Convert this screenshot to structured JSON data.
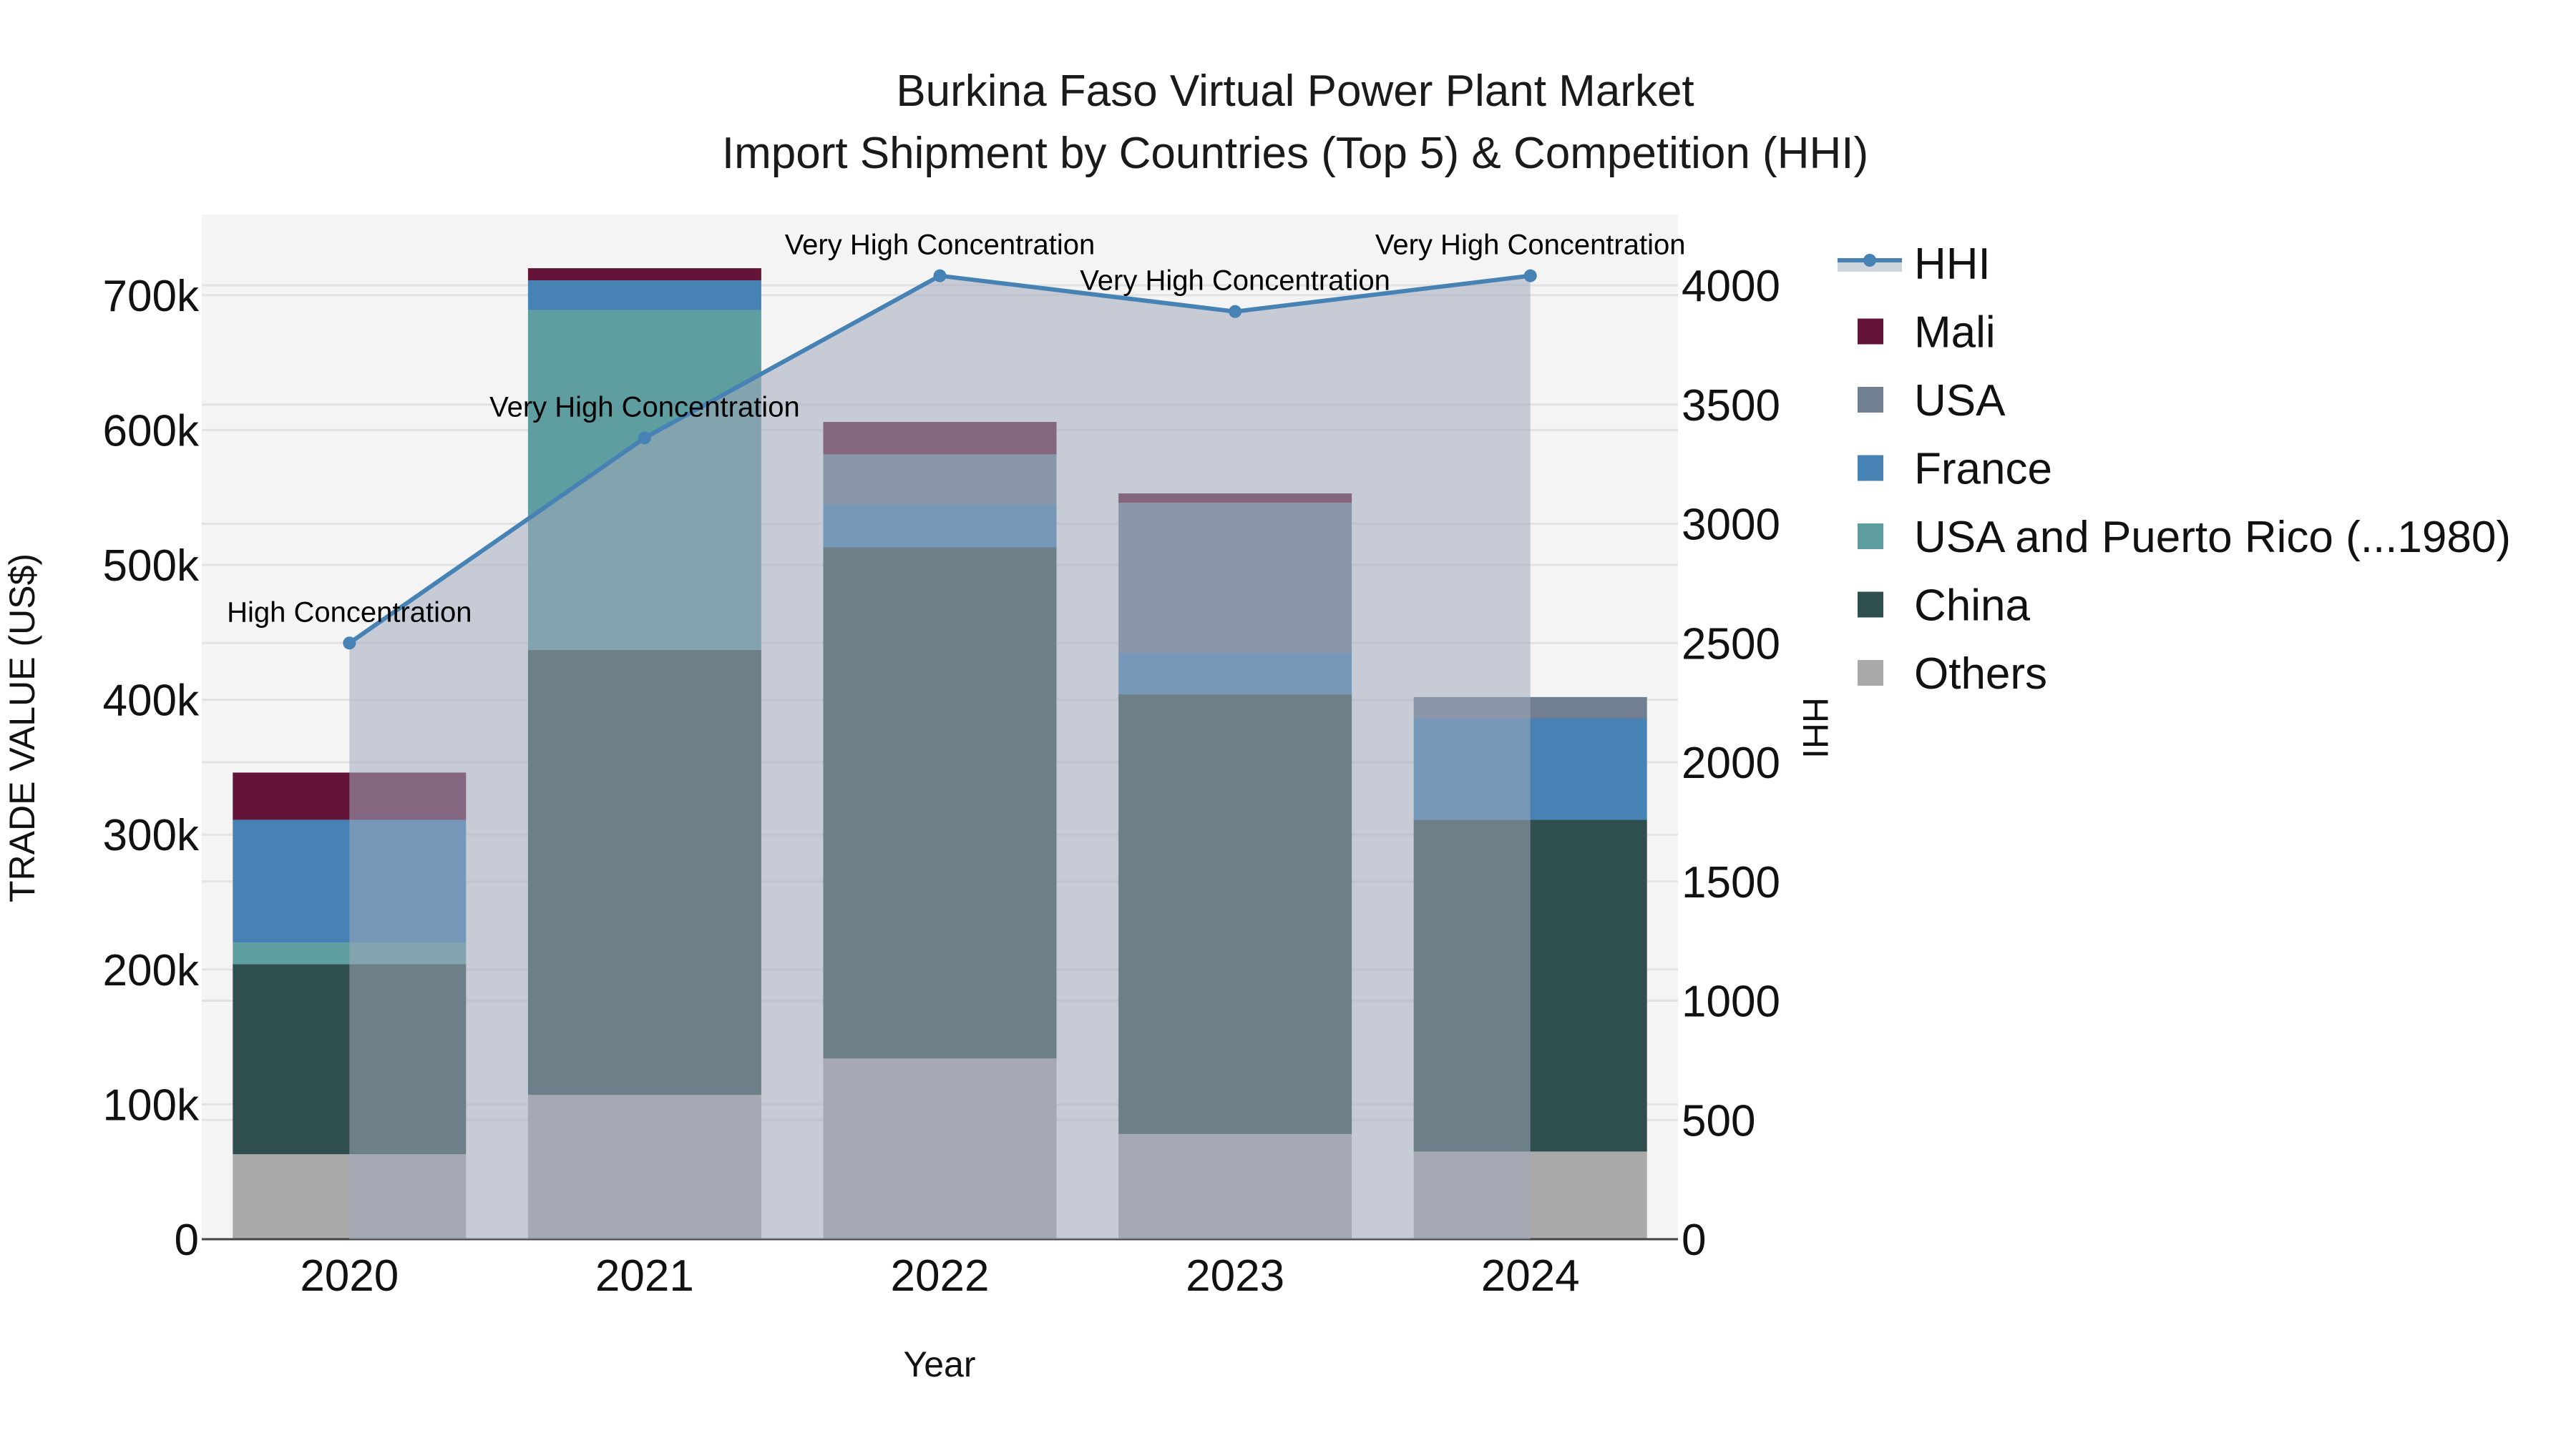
{
  "title": {
    "line1": "Burkina Faso Virtual Power Plant Market",
    "line2": "Import Shipment by Countries (Top 5) & Competition (HHI)"
  },
  "axes": {
    "x_title": "Year",
    "y_left_title": "TRADE VALUE (US$)",
    "y_right_title": "HHI",
    "y_left_ticks": [
      "0",
      "100k",
      "200k",
      "300k",
      "400k",
      "500k",
      "600k",
      "700k"
    ],
    "y_right_ticks": [
      "0",
      "500",
      "1000",
      "1500",
      "2000",
      "2500",
      "3000",
      "3500",
      "4000"
    ]
  },
  "legend": [
    {
      "label": "HHI",
      "color": "#4682b4",
      "type": "line"
    },
    {
      "label": "Mali",
      "color": "#641438",
      "type": "bar"
    },
    {
      "label": "USA",
      "color": "#708090",
      "type": "bar"
    },
    {
      "label": "France",
      "color": "#4682b4",
      "type": "bar"
    },
    {
      "label": "USA and Puerto Rico (...1980)",
      "color": "#5f9ea0",
      "type": "bar"
    },
    {
      "label": "China",
      "color": "#2f4f4f",
      "type": "bar"
    },
    {
      "label": "Others",
      "color": "#a9a9a9",
      "type": "bar"
    }
  ],
  "chart_data": {
    "type": "bar",
    "stacked": true,
    "title": "Burkina Faso Virtual Power Plant Market — Import Shipment by Countries (Top 5) & Competition (HHI)",
    "xlabel": "Year",
    "ylabel": "TRADE VALUE (US$)",
    "y2label": "HHI",
    "categories": [
      "2020",
      "2021",
      "2022",
      "2023",
      "2024"
    ],
    "ylim": [
      0,
      760000
    ],
    "y2lim": [
      0,
      4300
    ],
    "grid": true,
    "legend_position": "right",
    "series": [
      {
        "name": "Others",
        "color": "#a9a9a9",
        "values": [
          63000,
          107000,
          134000,
          78000,
          65000
        ]
      },
      {
        "name": "China",
        "color": "#2f4f4f",
        "values": [
          141000,
          330000,
          379000,
          326000,
          246000
        ]
      },
      {
        "name": "USA and Puerto Rico (...1980)",
        "color": "#5f9ea0",
        "values": [
          16000,
          252000,
          0,
          0,
          0
        ]
      },
      {
        "name": "France",
        "color": "#4682b4",
        "values": [
          91000,
          22000,
          32000,
          31000,
          75000
        ]
      },
      {
        "name": "USA",
        "color": "#708090",
        "values": [
          0,
          0,
          37000,
          111000,
          16000
        ]
      },
      {
        "name": "Mali",
        "color": "#641438",
        "values": [
          35000,
          9000,
          24000,
          7000,
          0
        ]
      }
    ],
    "line_series": {
      "name": "HHI",
      "axis": "right",
      "color": "#4682b4",
      "fill": "tozeroy",
      "values": [
        2500,
        3360,
        4040,
        3890,
        4040
      ],
      "annotations": [
        "High Concentration",
        "Very High Concentration",
        "Very High Concentration",
        "Very High Concentration",
        "Very High Concentration"
      ]
    }
  }
}
